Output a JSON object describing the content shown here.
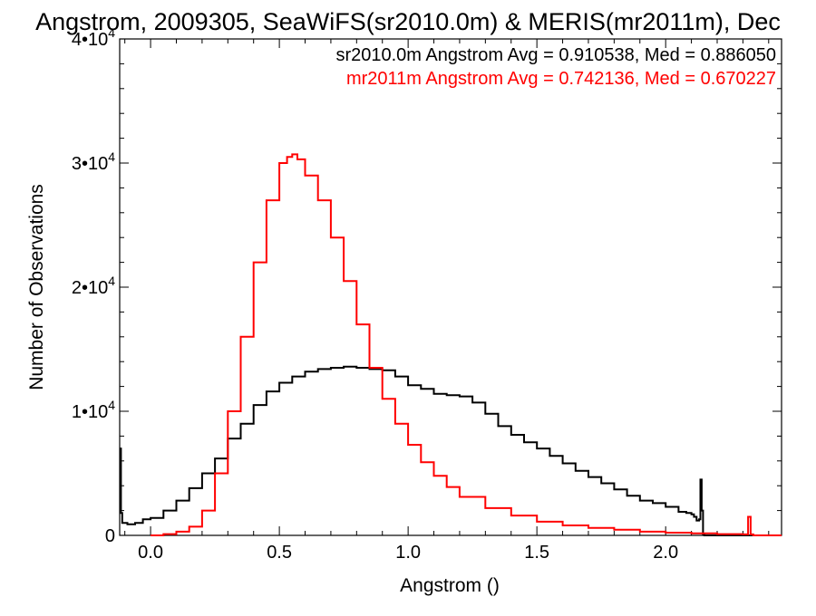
{
  "chart_data": {
    "type": "line",
    "title": "Angstrom, 2009305, SeaWiFS(sr2010.0m) & MERIS(mr2011m), Dec",
    "xlabel": "Angstrom ()",
    "ylabel": "Number of Observations",
    "xlim": [
      -0.12,
      2.45
    ],
    "ylim": [
      0,
      40000
    ],
    "x_ticks": [
      0.0,
      0.5,
      1.0,
      1.5,
      2.0
    ],
    "x_tick_labels": [
      "0.0",
      "0.5",
      "1.0",
      "1.5",
      "2.0"
    ],
    "y_ticks": [
      0,
      10000,
      20000,
      30000,
      40000
    ],
    "y_tick_labels": [
      {
        "base": "0",
        "exp": ""
      },
      {
        "base": "1•10",
        "exp": "4"
      },
      {
        "base": "2•10",
        "exp": "4"
      },
      {
        "base": "3•10",
        "exp": "4"
      },
      {
        "base": "4•10",
        "exp": "4"
      }
    ],
    "grid": false,
    "legend_placement": "top-right",
    "series": [
      {
        "name": "sr2010.0m",
        "color": "#000000",
        "legend": "sr2010.0m Angstrom Avg = 0.910538, Med = 0.886050",
        "x": [
          -0.12,
          -0.115,
          -0.11,
          -0.09,
          -0.06,
          -0.03,
          0.0,
          0.05,
          0.1,
          0.15,
          0.2,
          0.25,
          0.3,
          0.35,
          0.4,
          0.45,
          0.5,
          0.55,
          0.6,
          0.65,
          0.7,
          0.75,
          0.8,
          0.85,
          0.9,
          0.95,
          1.0,
          1.05,
          1.1,
          1.15,
          1.2,
          1.25,
          1.3,
          1.35,
          1.4,
          1.45,
          1.5,
          1.55,
          1.6,
          1.65,
          1.7,
          1.75,
          1.8,
          1.85,
          1.9,
          1.95,
          2.0,
          2.05,
          2.08,
          2.1,
          2.11,
          2.12,
          2.13,
          2.135,
          2.14,
          2.145,
          2.15,
          2.16,
          2.2,
          2.3,
          2.35
        ],
        "y": [
          7000,
          1800,
          1000,
          900,
          1000,
          1300,
          1400,
          2000,
          2800,
          3800,
          5000,
          6200,
          7800,
          9000,
          10500,
          11600,
          12300,
          12800,
          13200,
          13400,
          13500,
          13600,
          13500,
          13400,
          13300,
          12800,
          12100,
          11800,
          11400,
          11300,
          11200,
          10700,
          9800,
          8800,
          8100,
          7500,
          7000,
          6400,
          5800,
          5200,
          4700,
          4200,
          3700,
          3200,
          2800,
          2600,
          2300,
          1900,
          1800,
          1700,
          1500,
          1200,
          1300,
          4500,
          2000,
          100,
          0,
          0,
          0,
          0,
          0
        ]
      },
      {
        "name": "mr2011m",
        "color": "#ff0000",
        "legend": "mr2011m Angstrom Avg = 0.742136, Med = 0.670227",
        "x": [
          0.0,
          0.05,
          0.1,
          0.15,
          0.2,
          0.25,
          0.3,
          0.35,
          0.4,
          0.45,
          0.5,
          0.53,
          0.55,
          0.57,
          0.6,
          0.65,
          0.7,
          0.75,
          0.8,
          0.85,
          0.9,
          0.95,
          1.0,
          1.05,
          1.1,
          1.15,
          1.2,
          1.3,
          1.4,
          1.5,
          1.6,
          1.7,
          1.8,
          1.9,
          2.0,
          2.1,
          2.2,
          2.3,
          2.32,
          2.33,
          2.34,
          2.4,
          2.45
        ],
        "y": [
          0,
          100,
          300,
          700,
          2000,
          5000,
          10000,
          16000,
          22000,
          27000,
          30000,
          30500,
          30700,
          30300,
          29000,
          27000,
          24000,
          20500,
          17000,
          13500,
          11000,
          9000,
          7300,
          5900,
          4800,
          3900,
          3100,
          2200,
          1600,
          1100,
          800,
          600,
          450,
          300,
          220,
          160,
          100,
          80,
          1500,
          80,
          0,
          0,
          0
        ]
      }
    ]
  }
}
